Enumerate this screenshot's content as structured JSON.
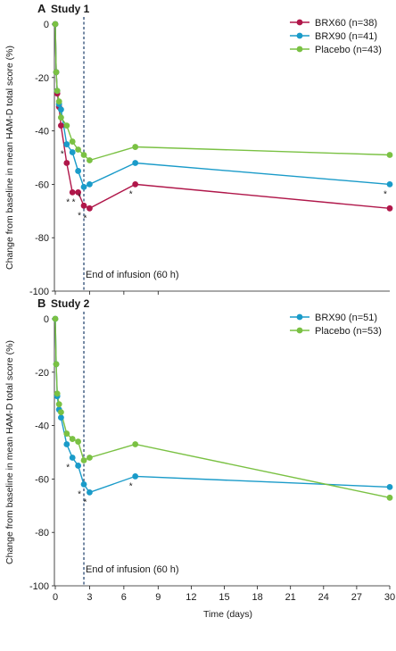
{
  "chart_data": [
    {
      "type": "line",
      "panel_letter": "A",
      "title": "Study 1",
      "ylabel": "Change from baseline in mean HAM-D total score (%)",
      "ylim": [
        -100,
        0
      ],
      "yticks": [
        0,
        -20,
        -40,
        -60,
        -80,
        -100
      ],
      "ytick_labels": [
        "0",
        "-20",
        "-40",
        "-60",
        "-80",
        "-100"
      ],
      "x_domain": [
        0,
        30
      ],
      "x_breakpoints": [
        [
          0,
          0
        ],
        [
          9,
          9
        ],
        [
          30,
          30
        ]
      ],
      "xticks": [
        0,
        3,
        6,
        9
      ],
      "legend_position": "top-right",
      "infusion_end_x": 2.5,
      "annotation": "End of infusion (60 h)",
      "series": [
        {
          "name": "BRX60 (n=38)",
          "color": "#b0174a",
          "x": [
            0,
            0.08,
            0.17,
            0.33,
            0.5,
            1.0,
            1.5,
            2.0,
            2.5,
            3.0,
            7.0,
            30.0
          ],
          "y": [
            0,
            -18,
            -26,
            -31,
            -38,
            -52,
            -63,
            -63,
            -68,
            -69,
            -60,
            -69
          ],
          "significant": [
            false,
            false,
            false,
            false,
            false,
            false,
            true,
            true,
            true,
            true,
            true,
            false
          ]
        },
        {
          "name": "BRX90 (n=41)",
          "color": "#1a9bc9",
          "x": [
            0,
            0.08,
            0.17,
            0.33,
            0.5,
            1.0,
            1.5,
            2.0,
            2.5,
            3.0,
            7.0,
            30.0
          ],
          "y": [
            0,
            -18,
            -25,
            -30,
            -32,
            -45,
            -48,
            -55,
            -61,
            -60,
            -52,
            -60
          ],
          "significant": [
            false,
            false,
            false,
            false,
            false,
            true,
            false,
            false,
            true,
            false,
            false,
            true
          ]
        },
        {
          "name": "Placebo (n=43)",
          "color": "#7ac143",
          "x": [
            0,
            0.08,
            0.17,
            0.33,
            0.5,
            1.0,
            1.5,
            2.0,
            2.5,
            3.0,
            7.0,
            30.0
          ],
          "y": [
            0,
            -18,
            -25,
            -29,
            -35,
            -38,
            -44,
            -47,
            -49,
            -51,
            -46,
            -49
          ],
          "significant": [
            false,
            false,
            false,
            false,
            false,
            false,
            false,
            false,
            false,
            false,
            false,
            false
          ]
        }
      ]
    },
    {
      "type": "line",
      "panel_letter": "B",
      "title": "Study 2",
      "xlabel": "Time (days)",
      "ylabel": "Change from baseline in mean HAM-D total score (%)",
      "ylim": [
        -100,
        0
      ],
      "yticks": [
        0,
        -20,
        -40,
        -60,
        -80,
        -100
      ],
      "ytick_labels": [
        "0",
        "-20",
        "-40",
        "-60",
        "-80",
        "-100"
      ],
      "x_domain": [
        0,
        30
      ],
      "x_breakpoints": [
        [
          0,
          0
        ],
        [
          9,
          9
        ],
        [
          30,
          30
        ]
      ],
      "xticks": [
        0,
        3,
        6,
        9,
        12,
        15,
        18,
        21,
        24,
        27,
        30
      ],
      "xtick_labels": [
        "0",
        "3",
        "6",
        "9",
        "12",
        "15",
        "18",
        "21",
        "24",
        "27",
        "30"
      ],
      "legend_position": "top-right",
      "infusion_end_x": 2.5,
      "annotation": "End of infusion (60 h)",
      "series": [
        {
          "name": "BRX90 (n=51)",
          "color": "#1a9bc9",
          "x": [
            0,
            0.08,
            0.17,
            0.33,
            0.5,
            1.0,
            1.5,
            2.0,
            2.5,
            3.0,
            7.0,
            30.0
          ],
          "y": [
            0,
            -17,
            -29,
            -34,
            -37,
            -47,
            -52,
            -55,
            -62,
            -65,
            -59,
            -63
          ],
          "significant": [
            false,
            false,
            false,
            false,
            false,
            false,
            true,
            false,
            true,
            true,
            true,
            false
          ]
        },
        {
          "name": "Placebo (n=53)",
          "color": "#7ac143",
          "x": [
            0,
            0.08,
            0.17,
            0.33,
            0.5,
            1.0,
            1.5,
            2.0,
            2.5,
            3.0,
            7.0,
            30.0
          ],
          "y": [
            0,
            -17,
            -28,
            -32,
            -35,
            -43,
            -45,
            -46,
            -53,
            -52,
            -47,
            -67
          ],
          "significant": [
            false,
            false,
            false,
            false,
            false,
            false,
            false,
            false,
            false,
            false,
            false,
            false
          ]
        }
      ]
    }
  ]
}
